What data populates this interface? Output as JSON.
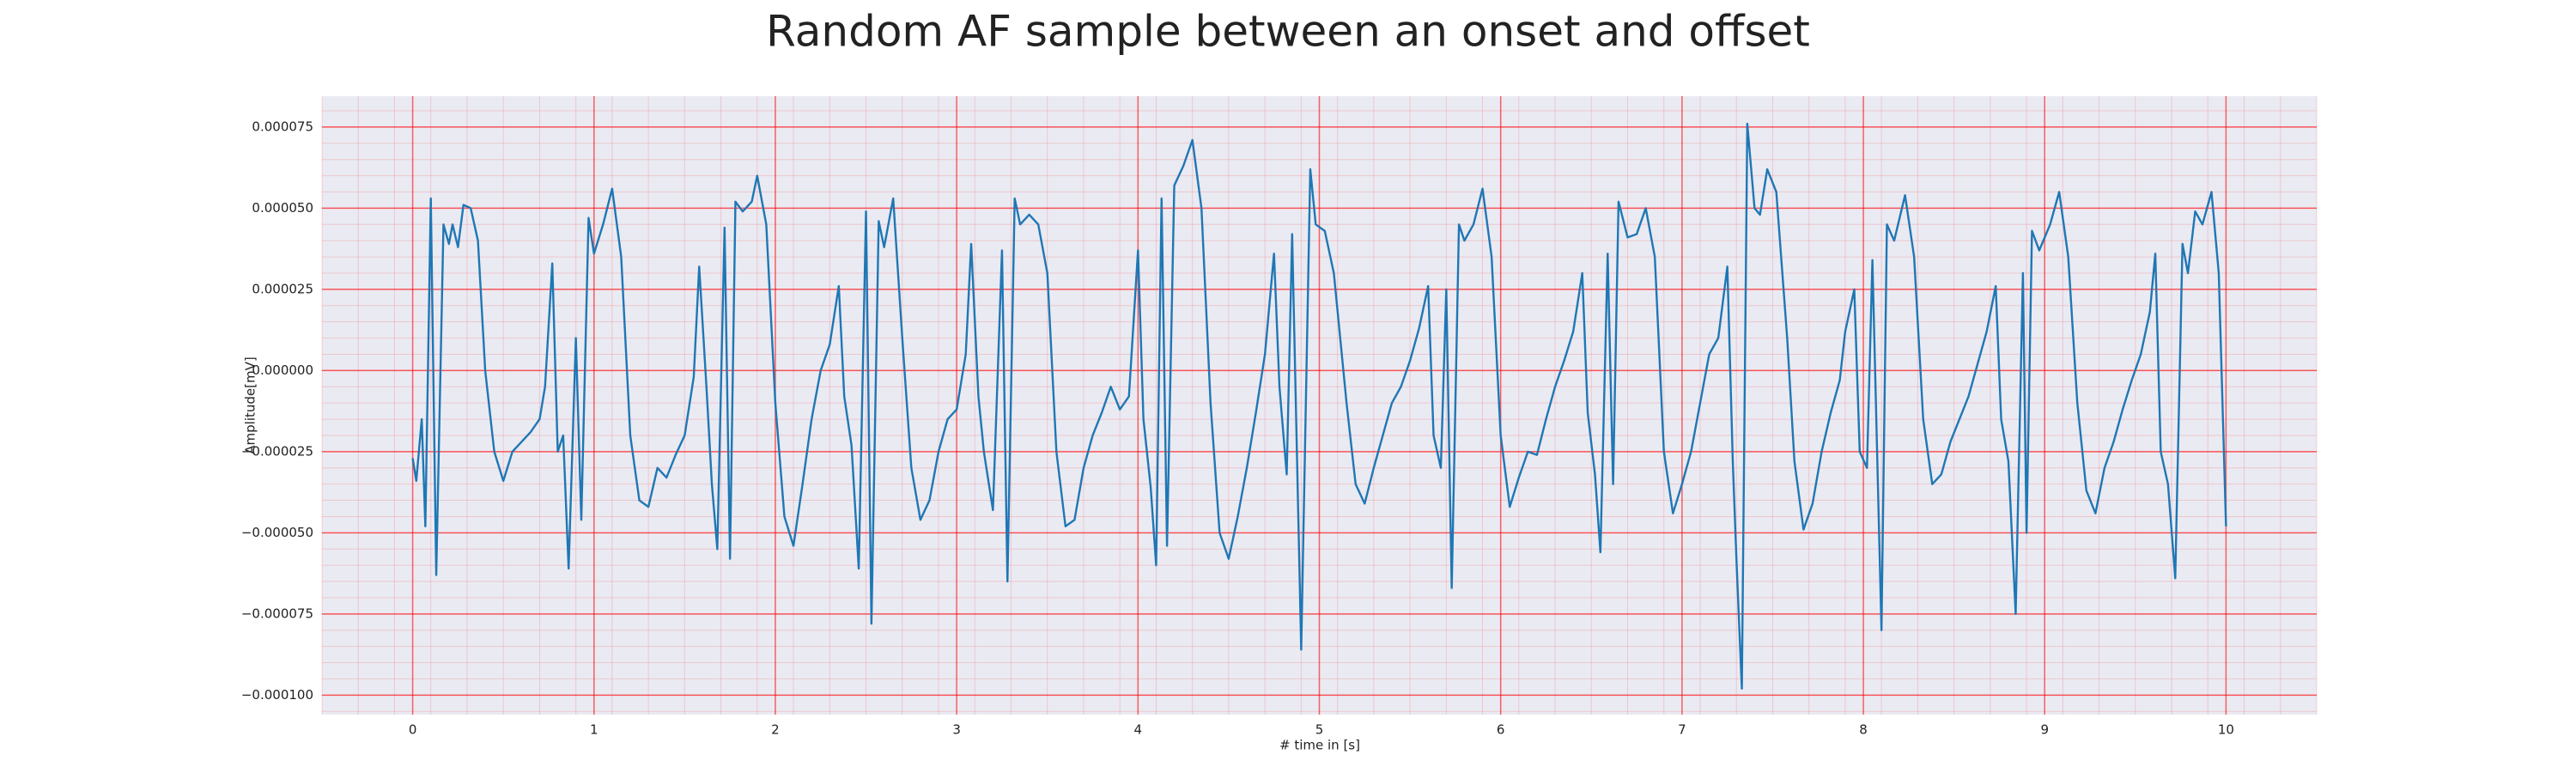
{
  "chart_data": {
    "type": "line",
    "title": "Random AF sample between an onset and offset",
    "xlabel": "# time in [s]",
    "ylabel": "Amplitude[mV]",
    "xlim": [
      -0.5,
      10.5
    ],
    "ylim": [
      -0.000106,
      8.45e-05
    ],
    "xticks": [
      0,
      1,
      2,
      3,
      4,
      5,
      6,
      7,
      8,
      9,
      10
    ],
    "yticks": [
      {
        "value": -0.0001,
        "label": "−0.000100"
      },
      {
        "value": -7.5e-05,
        "label": "−0.000075"
      },
      {
        "value": -5e-05,
        "label": "−0.000050"
      },
      {
        "value": -2.5e-05,
        "label": "−0.000025"
      },
      {
        "value": 0,
        "label": "0.000000"
      },
      {
        "value": 2.5e-05,
        "label": "0.000025"
      },
      {
        "value": 5e-05,
        "label": "0.000050"
      },
      {
        "value": 7.5e-05,
        "label": "0.000075"
      }
    ],
    "grid": true,
    "minor_grid": true,
    "grid_color": "#ff0000",
    "background": "#eaeaf2",
    "series": [
      {
        "color": "#1f77b4",
        "x": [
          0,
          0.02,
          0.05,
          0.07,
          0.1,
          0.13,
          0.17,
          0.2,
          0.22,
          0.25,
          0.28,
          0.32,
          0.36,
          0.4,
          0.45,
          0.5,
          0.55,
          0.6,
          0.65,
          0.7,
          0.73,
          0.77,
          0.8,
          0.83,
          0.86,
          0.9,
          0.93,
          0.97,
          1.0,
          1.05,
          1.1,
          1.15,
          1.2,
          1.25,
          1.3,
          1.35,
          1.4,
          1.45,
          1.5,
          1.55,
          1.58,
          1.62,
          1.65,
          1.68,
          1.72,
          1.75,
          1.78,
          1.82,
          1.87,
          1.9,
          1.95,
          2.0,
          2.05,
          2.1,
          2.15,
          2.2,
          2.25,
          2.3,
          2.35,
          2.38,
          2.42,
          2.46,
          2.5,
          2.53,
          2.57,
          2.6,
          2.65,
          2.7,
          2.75,
          2.8,
          2.85,
          2.9,
          2.95,
          3.0,
          3.05,
          3.08,
          3.12,
          3.15,
          3.2,
          3.25,
          3.28,
          3.32,
          3.35,
          3.4,
          3.45,
          3.5,
          3.55,
          3.6,
          3.65,
          3.7,
          3.75,
          3.8,
          3.85,
          3.9,
          3.95,
          4.0,
          4.03,
          4.07,
          4.1,
          4.13,
          4.16,
          4.2,
          4.25,
          4.3,
          4.35,
          4.4,
          4.45,
          4.5,
          4.55,
          4.6,
          4.65,
          4.7,
          4.75,
          4.78,
          4.82,
          4.85,
          4.9,
          4.95,
          4.98,
          5.03,
          5.08,
          5.15,
          5.2,
          5.25,
          5.3,
          5.35,
          5.4,
          5.45,
          5.5,
          5.55,
          5.6,
          5.63,
          5.67,
          5.7,
          5.73,
          5.77,
          5.8,
          5.85,
          5.9,
          5.95,
          6.0,
          6.05,
          6.1,
          6.15,
          6.2,
          6.25,
          6.3,
          6.35,
          6.4,
          6.45,
          6.48,
          6.52,
          6.55,
          6.59,
          6.62,
          6.65,
          6.7,
          6.75,
          6.8,
          6.85,
          6.9,
          6.95,
          7.0,
          7.05,
          7.1,
          7.15,
          7.2,
          7.25,
          7.28,
          7.3,
          7.33,
          7.36,
          7.4,
          7.43,
          7.47,
          7.52,
          7.58,
          7.62,
          7.67,
          7.72,
          7.77,
          7.82,
          7.87,
          7.9,
          7.95,
          7.98,
          8.02,
          8.05,
          8.1,
          8.13,
          8.17,
          8.23,
          8.28,
          8.33,
          8.38,
          8.43,
          8.48,
          8.53,
          8.58,
          8.63,
          8.68,
          8.73,
          8.76,
          8.8,
          8.84,
          8.88,
          8.9,
          8.93,
          8.97,
          9.03,
          9.08,
          9.13,
          9.18,
          9.23,
          9.28,
          9.33,
          9.38,
          9.43,
          9.48,
          9.53,
          9.58,
          9.61,
          9.64,
          9.68,
          9.72,
          9.76,
          9.79,
          9.83,
          9.87,
          9.92,
          9.96,
          10.0
        ],
        "values": [
          -2.7e-05,
          -3.4e-05,
          -1.5e-05,
          -4.8e-05,
          5.3e-05,
          -6.3e-05,
          4.5e-05,
          3.9e-05,
          4.5e-05,
          3.8e-05,
          5.1e-05,
          5e-05,
          4e-05,
          0,
          -2.5e-05,
          -3.4e-05,
          -2.5e-05,
          -2.2e-05,
          -1.9e-05,
          -1.5e-05,
          -5e-06,
          3.3e-05,
          -2.5e-05,
          -2e-05,
          -6.1e-05,
          1e-05,
          -4.6e-05,
          4.7e-05,
          3.6e-05,
          4.5e-05,
          5.6e-05,
          3.5e-05,
          -2e-05,
          -4e-05,
          -4.2e-05,
          -3e-05,
          -3.3e-05,
          -2.6e-05,
          -2e-05,
          -2e-06,
          3.2e-05,
          -5e-06,
          -3.5e-05,
          -5.5e-05,
          4.4e-05,
          -5.8e-05,
          5.2e-05,
          4.9e-05,
          5.2e-05,
          6e-05,
          4.5e-05,
          -1e-05,
          -4.5e-05,
          -5.4e-05,
          -3.5e-05,
          -1.5e-05,
          0,
          8e-06,
          2.6e-05,
          -8e-06,
          -2.3e-05,
          -6.1e-05,
          4.9e-05,
          -7.8e-05,
          4.6e-05,
          3.8e-05,
          5.3e-05,
          1e-05,
          -3e-05,
          -4.6e-05,
          -4e-05,
          -2.5e-05,
          -1.5e-05,
          -1.2e-05,
          5e-06,
          3.9e-05,
          -8e-06,
          -2.5e-05,
          -4.3e-05,
          3.7e-05,
          -6.5e-05,
          5.3e-05,
          4.5e-05,
          4.8e-05,
          4.5e-05,
          3e-05,
          -2.5e-05,
          -4.8e-05,
          -4.6e-05,
          -3e-05,
          -2e-05,
          -1.3e-05,
          -5e-06,
          -1.2e-05,
          -8e-06,
          3.7e-05,
          -1.5e-05,
          -3.6e-05,
          -6e-05,
          5.3e-05,
          -5.4e-05,
          5.7e-05,
          6.3e-05,
          7.1e-05,
          5e-05,
          -1e-05,
          -5e-05,
          -5.8e-05,
          -4.5e-05,
          -3e-05,
          -1.3e-05,
          5e-06,
          3.6e-05,
          -5e-06,
          -3.2e-05,
          4.2e-05,
          -8.6e-05,
          6.2e-05,
          4.5e-05,
          4.3e-05,
          3e-05,
          -1e-05,
          -3.5e-05,
          -4.1e-05,
          -3e-05,
          -2e-05,
          -1e-05,
          -5e-06,
          3e-06,
          1.3e-05,
          2.6e-05,
          -2e-05,
          -3e-05,
          2.5e-05,
          -6.7e-05,
          4.5e-05,
          4e-05,
          4.5e-05,
          5.6e-05,
          3.5e-05,
          -2e-05,
          -4.2e-05,
          -3.3e-05,
          -2.5e-05,
          -2.6e-05,
          -1.5e-05,
          -5e-06,
          3e-06,
          1.2e-05,
          3e-05,
          -1.3e-05,
          -3.2e-05,
          -5.6e-05,
          3.6e-05,
          -3.5e-05,
          5.2e-05,
          4.1e-05,
          4.2e-05,
          5e-05,
          3.5e-05,
          -2.5e-05,
          -4.4e-05,
          -3.5e-05,
          -2.5e-05,
          -1e-05,
          5e-06,
          1e-05,
          3.2e-05,
          -2.8e-05,
          -5.8e-05,
          -9.8e-05,
          7.6e-05,
          5e-05,
          4.8e-05,
          6.2e-05,
          5.5e-05,
          1e-05,
          -2.8e-05,
          -4.9e-05,
          -4.1e-05,
          -2.5e-05,
          -1.3e-05,
          -3e-06,
          1.2e-05,
          2.5e-05,
          -2.5e-05,
          -3e-05,
          3.4e-05,
          -8e-05,
          4.5e-05,
          4e-05,
          5.4e-05,
          3.5e-05,
          -1.5e-05,
          -3.5e-05,
          -3.2e-05,
          -2.2e-05,
          -1.5e-05,
          -8e-06,
          2e-06,
          1.2e-05,
          2.6e-05,
          -1.5e-05,
          -2.8e-05,
          -7.5e-05,
          3e-05,
          -5e-05,
          4.3e-05,
          3.7e-05,
          4.5e-05,
          5.5e-05,
          3.5e-05,
          -1e-05,
          -3.7e-05,
          -4.4e-05,
          -3e-05,
          -2.2e-05,
          -1.2e-05,
          -3e-06,
          5e-06,
          1.8e-05,
          3.6e-05,
          -2.5e-05,
          -3.5e-05,
          -6.4e-05,
          3.9e-05,
          3e-05,
          4.9e-05,
          4.5e-05,
          5.5e-05,
          3e-05,
          -4.8e-05
        ]
      }
    ]
  }
}
